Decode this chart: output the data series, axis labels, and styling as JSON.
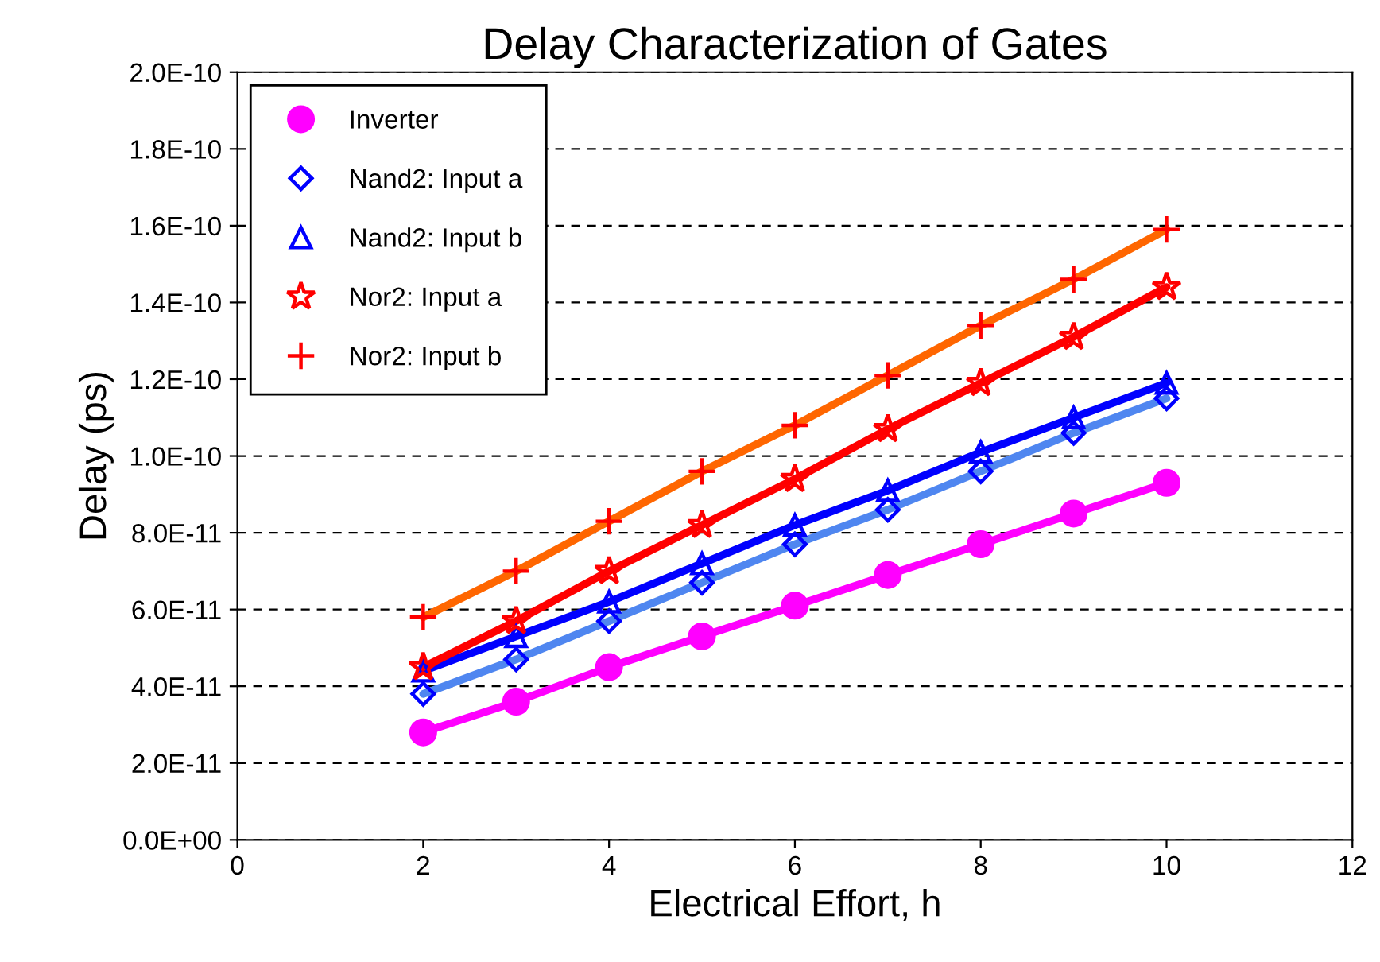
{
  "chart_data": {
    "type": "scatter",
    "title": "Delay Characterization of Gates",
    "xlabel": "Electrical Effort, h",
    "ylabel": "Delay (ps)",
    "xlim": [
      0,
      12
    ],
    "xticks": [
      0,
      2,
      4,
      6,
      8,
      10,
      12
    ],
    "ylim": [
      0,
      2e-10
    ],
    "yticks": [
      {
        "value": 0,
        "label": "0.0E+00"
      },
      {
        "value": 2e-11,
        "label": "2.0E-11"
      },
      {
        "value": 4e-11,
        "label": "4.0E-11"
      },
      {
        "value": 6e-11,
        "label": "6.0E-11"
      },
      {
        "value": 8e-11,
        "label": "8.0E-11"
      },
      {
        "value": 1e-10,
        "label": "1.0E-10"
      },
      {
        "value": 1.2e-10,
        "label": "1.2E-10"
      },
      {
        "value": 1.4e-10,
        "label": "1.4E-10"
      },
      {
        "value": 1.6e-10,
        "label": "1.6E-10"
      },
      {
        "value": 1.8e-10,
        "label": "1.8E-10"
      },
      {
        "value": 2e-10,
        "label": "2.0E-10"
      }
    ],
    "grid": "y",
    "legend": "top left",
    "x": [
      2,
      3,
      4,
      5,
      6,
      7,
      8,
      9,
      10
    ],
    "series": [
      {
        "type": "line",
        "color": "#ff00ff",
        "values": [
          2.8e-11,
          3.6e-11,
          4.5e-11,
          5.3e-11,
          6.1e-11,
          6.9e-11,
          7.7e-11,
          8.5e-11,
          9.3e-11
        ],
        "marker": "none"
      },
      {
        "type": "line",
        "color": "#4f86f0",
        "values": [
          3.8e-11,
          4.7e-11,
          5.7e-11,
          6.7e-11,
          7.7e-11,
          8.6e-11,
          9.6e-11,
          1.06e-10,
          1.15e-10
        ],
        "marker": "none"
      },
      {
        "type": "line",
        "color": "#0000ff",
        "values": [
          4.4e-11,
          5.3e-11,
          6.2e-11,
          7.2e-11,
          8.2e-11,
          9.1e-11,
          1.01e-10,
          1.1e-10,
          1.19e-10
        ],
        "marker": "none"
      },
      {
        "type": "line",
        "color": "#ff0000",
        "values": [
          4.5e-11,
          5.7e-11,
          7e-11,
          8.2e-11,
          9.4e-11,
          1.07e-10,
          1.19e-10,
          1.31e-10,
          1.44e-10
        ],
        "marker": "none"
      },
      {
        "type": "line",
        "color": "#ff6600",
        "values": [
          5.8e-11,
          7e-11,
          8.3e-11,
          9.6e-11,
          1.08e-10,
          1.21e-10,
          1.34e-10,
          1.46e-10,
          1.59e-10
        ],
        "marker": "none"
      },
      {
        "name": "Inverter",
        "color": "#ff00ff",
        "marker": "circle",
        "values": [
          2.8e-11,
          3.6e-11,
          4.5e-11,
          5.3e-11,
          6.1e-11,
          6.9e-11,
          7.7e-11,
          8.5e-11,
          9.3e-11
        ]
      },
      {
        "name": "Nand2: Input a",
        "color": "#0000ff",
        "marker": "diamond",
        "values": [
          3.8e-11,
          4.7e-11,
          5.7e-11,
          6.7e-11,
          7.7e-11,
          8.6e-11,
          9.6e-11,
          1.06e-10,
          1.15e-10
        ]
      },
      {
        "name": "Nand2: Input b",
        "color": "#0000ff",
        "marker": "triangle",
        "values": [
          4.4e-11,
          5.3e-11,
          6.2e-11,
          7.2e-11,
          8.2e-11,
          9.1e-11,
          1.01e-10,
          1.1e-10,
          1.19e-10
        ]
      },
      {
        "name": "Nor2: Input a",
        "color": "#ff0000",
        "marker": "star",
        "values": [
          4.5e-11,
          5.7e-11,
          7e-11,
          8.2e-11,
          9.4e-11,
          1.07e-10,
          1.19e-10,
          1.31e-10,
          1.44e-10
        ]
      },
      {
        "name": "Nor2: Input b",
        "color": "#ff0000",
        "marker": "cross",
        "values": [
          5.8e-11,
          7e-11,
          8.3e-11,
          9.6e-11,
          1.08e-10,
          1.21e-10,
          1.34e-10,
          1.46e-10,
          1.59e-10
        ]
      }
    ]
  }
}
